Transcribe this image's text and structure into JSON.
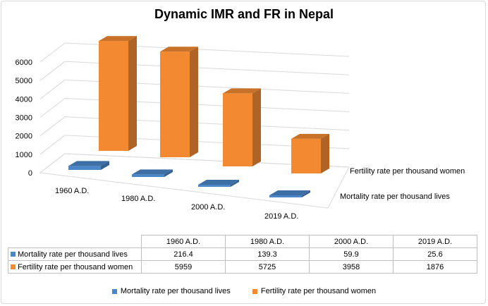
{
  "chart_data": {
    "type": "bar",
    "title": "Dynamic IMR and FR in Nepal",
    "categories": [
      "1960 A.D.",
      "1980 A.D.",
      "2000 A.D.",
      "2019 A.D."
    ],
    "series": [
      {
        "name": "Mortality rate per thousand lives",
        "values": [
          216.4,
          139.3,
          59.9,
          25.6
        ],
        "color": "#4a86c8"
      },
      {
        "name": "Fertility rate per thousand women",
        "values": [
          5959,
          5725,
          3958,
          1876
        ],
        "color": "#f38a32"
      }
    ],
    "y_ticks": [
      "0",
      "1000",
      "2000",
      "3000",
      "4000",
      "5000",
      "6000"
    ],
    "ylim": [
      0,
      6000
    ],
    "grid": true,
    "legend_position": "bottom",
    "data_table": {
      "header": [
        "1960 A.D.",
        "1980 A.D.",
        "2000 A.D.",
        "2019 A.D."
      ],
      "rows": [
        {
          "label": "Mortality rate per thousand lives",
          "values": [
            "216.4",
            "139.3",
            "59.9",
            "25.6"
          ]
        },
        {
          "label": "Fertility rate per thousand women",
          "values": [
            "5959",
            "5725",
            "3958",
            "1876"
          ]
        }
      ]
    }
  }
}
